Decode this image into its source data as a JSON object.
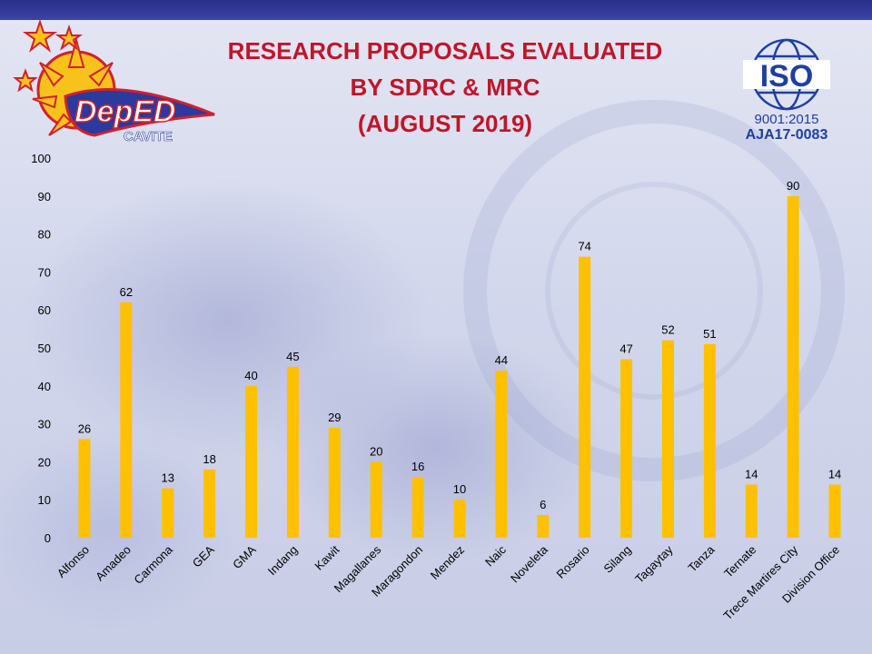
{
  "title": {
    "line1": "RESEARCH PROPOSALS EVALUATED",
    "line2": "BY SDRC & MRC",
    "line3": "(AUGUST 2019)"
  },
  "logos": {
    "deped_text": "DepED",
    "deped_sub": "CAVITE",
    "iso_text": "ISO",
    "iso_standard": "9001:2015",
    "iso_cert": "AJA17-0083"
  },
  "colors": {
    "bar": "#FFC000",
    "title": "#C0152A",
    "top_bar": "#2A2F8A"
  },
  "chart_data": {
    "type": "bar",
    "title": "RESEARCH PROPOSALS EVALUATED BY SDRC & MRC (AUGUST 2019)",
    "xlabel": "",
    "ylabel": "",
    "ylim": [
      0,
      100
    ],
    "yticks": [
      0,
      10,
      20,
      30,
      40,
      50,
      60,
      70,
      80,
      90,
      100
    ],
    "grid": false,
    "legend": "none",
    "categories": [
      "Alfonso",
      "Amadeo",
      "Carmona",
      "GEA",
      "GMA",
      "Indang",
      "Kawit",
      "Magallanes",
      "Maragondon",
      "Mendez",
      "Naic",
      "Noveleta",
      "Rosario",
      "Silang",
      "Tagaytay",
      "Tanza",
      "Ternate",
      "Trece Martires City",
      "Division Office"
    ],
    "values": [
      26,
      62,
      13,
      18,
      40,
      45,
      29,
      20,
      16,
      10,
      44,
      6,
      74,
      47,
      52,
      51,
      14,
      90,
      14
    ]
  }
}
